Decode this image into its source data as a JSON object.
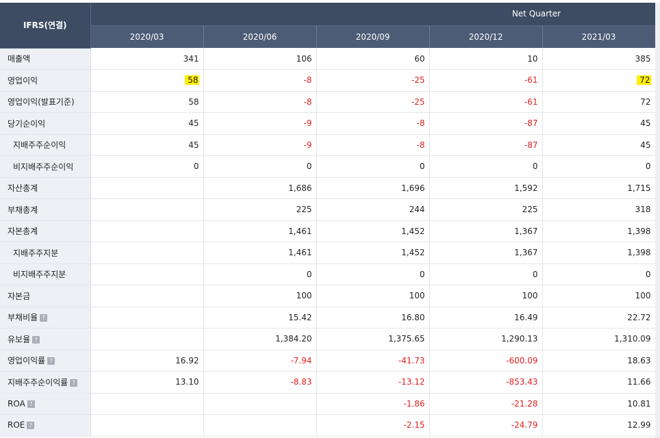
{
  "header": {
    "label_col": "IFRS(연결)",
    "group_title": "Net Quarter",
    "periods": [
      "2020/03",
      "2020/06",
      "2020/09",
      "2020/12",
      "2021/03"
    ]
  },
  "colors": {
    "header_bg": "#3d4b63",
    "negative": "#e02020",
    "highlight": "#ffee00"
  },
  "rows": [
    {
      "label": "매출액",
      "indent": false,
      "help": false,
      "values": [
        "341",
        "106",
        "60",
        "10",
        "385"
      ]
    },
    {
      "label": "영업이익",
      "indent": false,
      "help": false,
      "values": [
        "58",
        "-8",
        "-25",
        "-61",
        "72"
      ],
      "highlight": [
        0,
        4
      ]
    },
    {
      "label": "영업이익(발표기준)",
      "indent": false,
      "help": false,
      "values": [
        "58",
        "-8",
        "-25",
        "-61",
        "72"
      ]
    },
    {
      "label": "당기순이익",
      "indent": false,
      "help": false,
      "values": [
        "45",
        "-9",
        "-8",
        "-87",
        "45"
      ]
    },
    {
      "label": "지배주주순이익",
      "indent": true,
      "help": false,
      "values": [
        "45",
        "-9",
        "-8",
        "-87",
        "45"
      ]
    },
    {
      "label": "비지배주주순이익",
      "indent": true,
      "help": false,
      "values": [
        "0",
        "0",
        "0",
        "0",
        "0"
      ]
    },
    {
      "label": "자산총계",
      "indent": false,
      "help": false,
      "values": [
        "",
        "1,686",
        "1,696",
        "1,592",
        "1,715"
      ]
    },
    {
      "label": "부채총계",
      "indent": false,
      "help": false,
      "values": [
        "",
        "225",
        "244",
        "225",
        "318"
      ]
    },
    {
      "label": "자본총계",
      "indent": false,
      "help": false,
      "values": [
        "",
        "1,461",
        "1,452",
        "1,367",
        "1,398"
      ]
    },
    {
      "label": "지배주주지분",
      "indent": true,
      "help": false,
      "values": [
        "",
        "1,461",
        "1,452",
        "1,367",
        "1,398"
      ]
    },
    {
      "label": "비지배주주지분",
      "indent": true,
      "help": false,
      "values": [
        "",
        "0",
        "0",
        "0",
        "0"
      ]
    },
    {
      "label": "자본금",
      "indent": false,
      "help": false,
      "values": [
        "",
        "100",
        "100",
        "100",
        "100"
      ]
    },
    {
      "label": "부채비율",
      "indent": false,
      "help": true,
      "values": [
        "",
        "15.42",
        "16.80",
        "16.49",
        "22.72"
      ]
    },
    {
      "label": "유보율",
      "indent": false,
      "help": true,
      "values": [
        "",
        "1,384.20",
        "1,375.65",
        "1,290.13",
        "1,310.09"
      ]
    },
    {
      "label": "영업이익률",
      "indent": false,
      "help": true,
      "values": [
        "16.92",
        "-7.94",
        "-41.73",
        "-600.09",
        "18.63"
      ]
    },
    {
      "label": "지배주주순이익률",
      "indent": false,
      "help": true,
      "values": [
        "13.10",
        "-8.83",
        "-13.12",
        "-853.43",
        "11.66"
      ]
    },
    {
      "label": "ROA",
      "indent": false,
      "help": true,
      "values": [
        "",
        "",
        "-1.86",
        "-21.28",
        "10.81"
      ]
    },
    {
      "label": "ROE",
      "indent": false,
      "help": true,
      "values": [
        "",
        "",
        "-2.15",
        "-24.79",
        "12.99"
      ]
    }
  ]
}
